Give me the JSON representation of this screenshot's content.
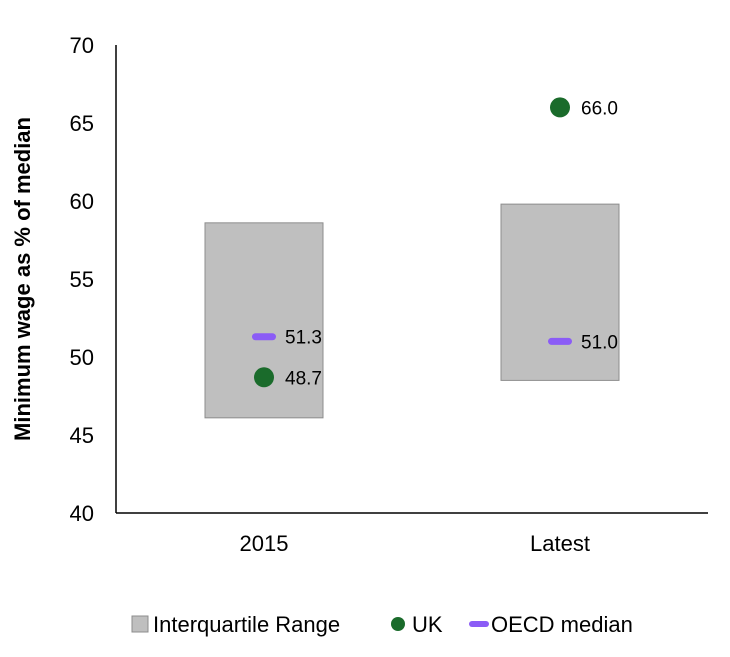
{
  "chart_data": {
    "type": "box",
    "categories": [
      "2015",
      "Latest"
    ],
    "ylabel": "Minimum wage as % of median",
    "ylim": [
      40,
      70
    ],
    "yticks": [
      40,
      45,
      50,
      55,
      60,
      65,
      70
    ],
    "grid": false,
    "legend_position": "bottom",
    "series": [
      {
        "name": "Interquartile Range",
        "kind": "range",
        "low": [
          46.1,
          48.5
        ],
        "high": [
          58.6,
          59.8
        ],
        "color": "#bfbfbf"
      },
      {
        "name": "UK",
        "kind": "marker",
        "values": [
          48.7,
          66.0
        ],
        "labels": [
          "48.7",
          "66.0"
        ],
        "color": "#1a6b2b"
      },
      {
        "name": "OECD median",
        "kind": "dash",
        "values": [
          51.3,
          51.0
        ],
        "labels": [
          "51.3",
          "51.0"
        ],
        "color": "#8b5cf6"
      }
    ]
  }
}
